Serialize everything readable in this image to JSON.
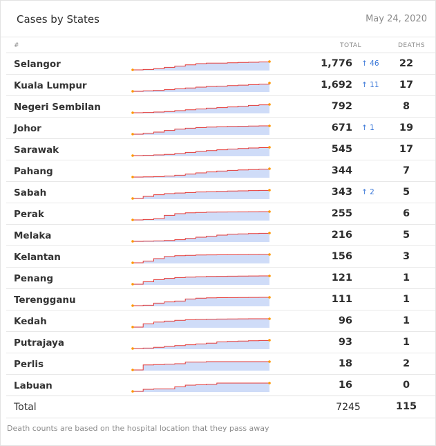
{
  "header": {
    "title": "Cases by States",
    "date": "May 24, 2020"
  },
  "columns": {
    "index": "#",
    "total": "TOTAL",
    "deaths": "DEATHS"
  },
  "states": [
    {
      "name": "Selangor",
      "total": "1,776",
      "increase": "46",
      "deaths": "22",
      "trend": [
        0.0,
        0.05,
        0.15,
        0.3,
        0.45,
        0.6,
        0.75,
        0.82,
        0.82,
        0.85,
        0.9,
        0.92,
        0.95,
        1.0
      ]
    },
    {
      "name": "Kuala Lumpur",
      "total": "1,692",
      "increase": "11",
      "deaths": "17",
      "trend": [
        0.0,
        0.05,
        0.12,
        0.2,
        0.3,
        0.4,
        0.5,
        0.58,
        0.62,
        0.68,
        0.74,
        0.8,
        0.86,
        1.0
      ]
    },
    {
      "name": "Negeri Sembilan",
      "total": "792",
      "increase": "",
      "deaths": "8",
      "trend": [
        0.0,
        0.03,
        0.08,
        0.15,
        0.25,
        0.35,
        0.45,
        0.55,
        0.62,
        0.7,
        0.78,
        0.88,
        0.95,
        1.0
      ]
    },
    {
      "name": "Johor",
      "total": "671",
      "increase": "1",
      "deaths": "19",
      "trend": [
        0.0,
        0.1,
        0.25,
        0.45,
        0.6,
        0.72,
        0.8,
        0.86,
        0.9,
        0.94,
        0.96,
        0.98,
        1.0,
        1.0
      ]
    },
    {
      "name": "Sarawak",
      "total": "545",
      "increase": "",
      "deaths": "17",
      "trend": [
        0.0,
        0.03,
        0.08,
        0.15,
        0.25,
        0.38,
        0.5,
        0.6,
        0.7,
        0.78,
        0.86,
        0.92,
        0.96,
        1.0
      ]
    },
    {
      "name": "Pahang",
      "total": "344",
      "increase": "",
      "deaths": "7",
      "trend": [
        0.0,
        0.02,
        0.05,
        0.12,
        0.22,
        0.35,
        0.5,
        0.62,
        0.72,
        0.8,
        0.86,
        0.9,
        0.95,
        1.0
      ]
    },
    {
      "name": "Sabah",
      "total": "343",
      "increase": "2",
      "deaths": "5",
      "trend": [
        0.0,
        0.25,
        0.45,
        0.58,
        0.66,
        0.72,
        0.78,
        0.82,
        0.86,
        0.9,
        0.92,
        0.95,
        0.97,
        1.0
      ]
    },
    {
      "name": "Perak",
      "total": "255",
      "increase": "",
      "deaths": "6",
      "trend": [
        0.0,
        0.05,
        0.15,
        0.55,
        0.75,
        0.85,
        0.9,
        0.93,
        0.95,
        0.96,
        0.97,
        0.98,
        0.99,
        1.0
      ]
    },
    {
      "name": "Melaka",
      "total": "216",
      "increase": "",
      "deaths": "5",
      "trend": [
        0.0,
        0.02,
        0.05,
        0.1,
        0.2,
        0.35,
        0.5,
        0.62,
        0.75,
        0.85,
        0.9,
        0.94,
        0.97,
        1.0
      ]
    },
    {
      "name": "Kelantan",
      "total": "156",
      "increase": "",
      "deaths": "3",
      "trend": [
        0.0,
        0.2,
        0.5,
        0.75,
        0.85,
        0.9,
        0.93,
        0.95,
        0.96,
        0.97,
        0.98,
        0.99,
        1.0,
        1.0
      ]
    },
    {
      "name": "Penang",
      "total": "121",
      "increase": "",
      "deaths": "1",
      "trend": [
        0.0,
        0.3,
        0.55,
        0.7,
        0.8,
        0.86,
        0.9,
        0.93,
        0.95,
        0.97,
        0.98,
        0.99,
        1.0,
        1.0
      ]
    },
    {
      "name": "Terengganu",
      "total": "111",
      "increase": "",
      "deaths": "1",
      "trend": [
        0.0,
        0.05,
        0.3,
        0.45,
        0.55,
        0.8,
        0.9,
        0.94,
        0.96,
        0.97,
        0.98,
        0.99,
        1.0,
        1.0
      ]
    },
    {
      "name": "Kedah",
      "total": "96",
      "increase": "",
      "deaths": "1",
      "trend": [
        0.0,
        0.4,
        0.6,
        0.72,
        0.82,
        0.88,
        0.92,
        0.95,
        0.97,
        0.98,
        0.99,
        1.0,
        1.0,
        1.0
      ]
    },
    {
      "name": "Putrajaya",
      "total": "93",
      "increase": "",
      "deaths": "1",
      "trend": [
        0.0,
        0.05,
        0.15,
        0.25,
        0.35,
        0.45,
        0.55,
        0.65,
        0.8,
        0.86,
        0.9,
        0.94,
        0.97,
        1.0
      ]
    },
    {
      "name": "Perlis",
      "total": "18",
      "increase": "",
      "deaths": "2",
      "trend": [
        0.0,
        0.6,
        0.65,
        0.7,
        0.75,
        0.95,
        0.95,
        1.0,
        1.0,
        1.0,
        1.0,
        1.0,
        1.0,
        1.0
      ]
    },
    {
      "name": "Labuan",
      "total": "16",
      "increase": "",
      "deaths": "0",
      "trend": [
        0.0,
        0.25,
        0.3,
        0.3,
        0.55,
        0.75,
        0.8,
        0.85,
        1.0,
        1.0,
        1.0,
        1.0,
        1.0,
        1.0
      ]
    }
  ],
  "totals": {
    "label": "Total",
    "cases": "7245",
    "deaths": "115"
  },
  "footer": {
    "note": "Death counts are based on the hospital location that they pass away"
  },
  "colors": {
    "line": "#e53935",
    "fill": "#cfdcf8",
    "dot": "#ff9800",
    "increase": "#3a77d8"
  },
  "icons": {
    "increase": "arrow-up-icon"
  }
}
